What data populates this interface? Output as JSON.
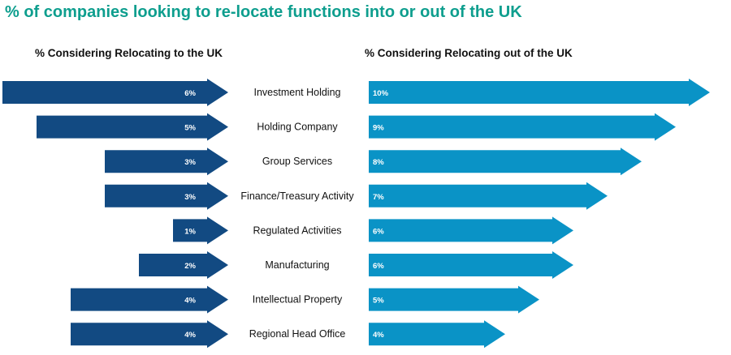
{
  "chart_data": {
    "type": "bar",
    "title": "% of companies looking to re-locate functions into or out of the UK",
    "categories": [
      "Investment Holding",
      "Holding Company",
      "Group Services",
      "Finance/Treasury Activity",
      "Regulated Activities",
      "Manufacturing",
      "Intellectual Property",
      "Regional Head Office"
    ],
    "series": [
      {
        "name": "% Considering Relocating to the UK",
        "values": [
          6,
          5,
          3,
          3,
          1,
          2,
          4,
          4
        ],
        "color": "#124a82"
      },
      {
        "name": "% Considering Relocating out of  the UK",
        "values": [
          10,
          9,
          8,
          7,
          6,
          6,
          5,
          4
        ],
        "color": "#0a93c6"
      }
    ],
    "value_suffix": "%"
  }
}
